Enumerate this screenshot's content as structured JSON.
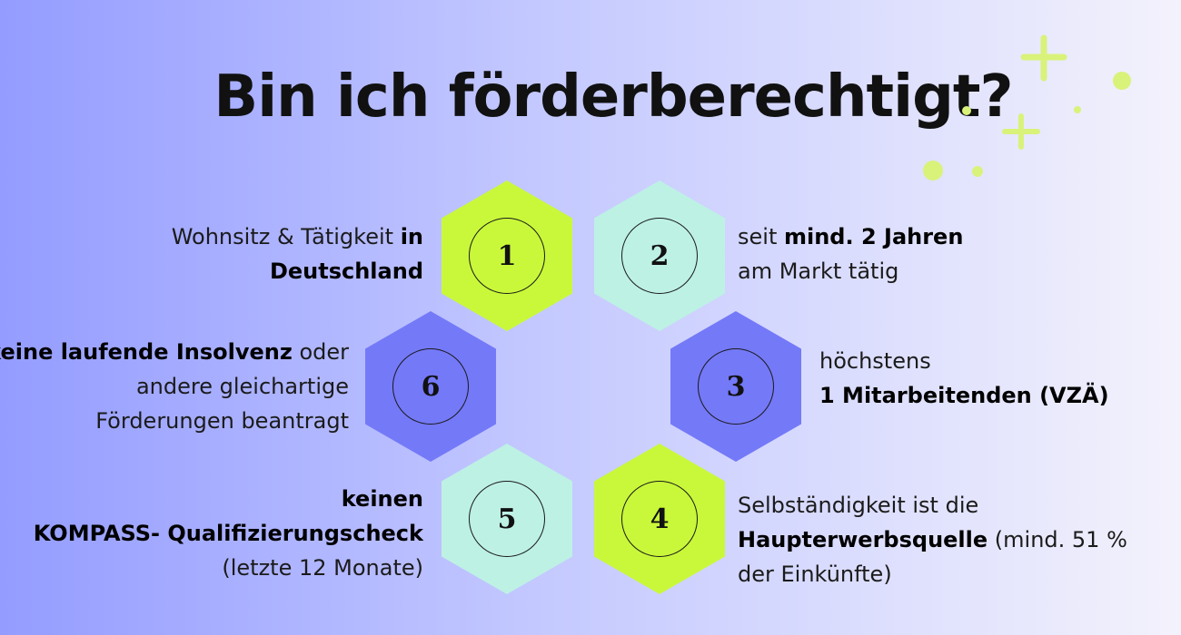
{
  "title": "Bin ich förderberechtigt?",
  "colors": {
    "lime": "#c9f83a",
    "mint": "#bdf1e4",
    "blue": "#7479f8",
    "deco": "#d9f27a"
  },
  "items": [
    {
      "num": "1",
      "normal_a": "Wohnsitz & Tätigkeit ",
      "bold_a": "in",
      "bold_b": "Deutschland"
    },
    {
      "num": "2",
      "normal_a": "seit ",
      "bold_a": "mind. 2 Jahren",
      "normal_b": "am Markt tätig"
    },
    {
      "num": "3",
      "normal_a": "höchstens",
      "bold_a": "1 Mitarbeitenden (VZÄ)"
    },
    {
      "num": "4",
      "normal_a": "Selbständigkeit ist die",
      "bold_a": "Haupterwerbsquelle",
      "normal_b": " (mind. 51 %",
      "normal_c": "der Einkünfte)"
    },
    {
      "num": "5",
      "bold_a": "keinen",
      "bold_b": "KOMPASS- Qualifizierungscheck",
      "normal_a": "(letzte 12 Monate)"
    },
    {
      "num": "6",
      "bold_a": "keine laufende Insolvenz",
      "normal_a": " oder",
      "normal_b": "andere gleichartige",
      "normal_c": "Förderungen beantragt"
    }
  ]
}
